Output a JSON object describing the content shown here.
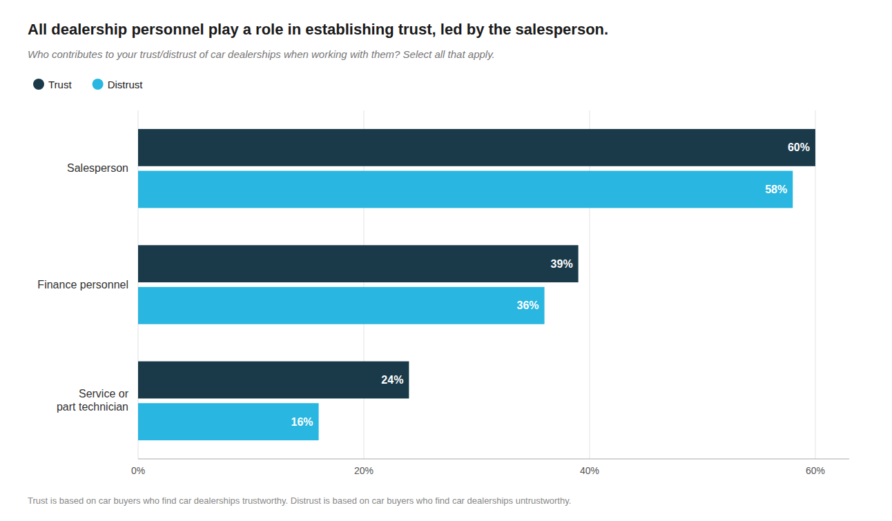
{
  "chart_data": {
    "type": "bar",
    "orientation": "horizontal",
    "title": "All dealership personnel play a role in establishing trust, led by the salesperson.",
    "subtitle": "Who contributes to your trust/distrust of car dealerships when working with them? Select all that apply.",
    "footnote": "Trust is based on car buyers who find car dealerships trustworthy. Distrust is based on car buyers who find car dealerships untrustworthy.",
    "categories": [
      "Salesperson",
      "Finance personnel",
      "Service or\npart technician"
    ],
    "series": [
      {
        "name": "Trust",
        "color": "#1a3a4a",
        "values": [
          60,
          39,
          24
        ],
        "value_labels": [
          "60%",
          "39%",
          "24%"
        ]
      },
      {
        "name": "Distrust",
        "color": "#29b6e0",
        "values": [
          58,
          36,
          16
        ],
        "value_labels": [
          "58%",
          "36%",
          "16%"
        ]
      }
    ],
    "xlim": [
      0,
      63
    ],
    "xticks": [
      {
        "value": 0,
        "label": "0%"
      },
      {
        "value": 20,
        "label": "20%"
      },
      {
        "value": 40,
        "label": "40%"
      },
      {
        "value": 60,
        "label": "60%"
      }
    ],
    "grid": true,
    "legend": "top-left",
    "data_labels": true
  }
}
